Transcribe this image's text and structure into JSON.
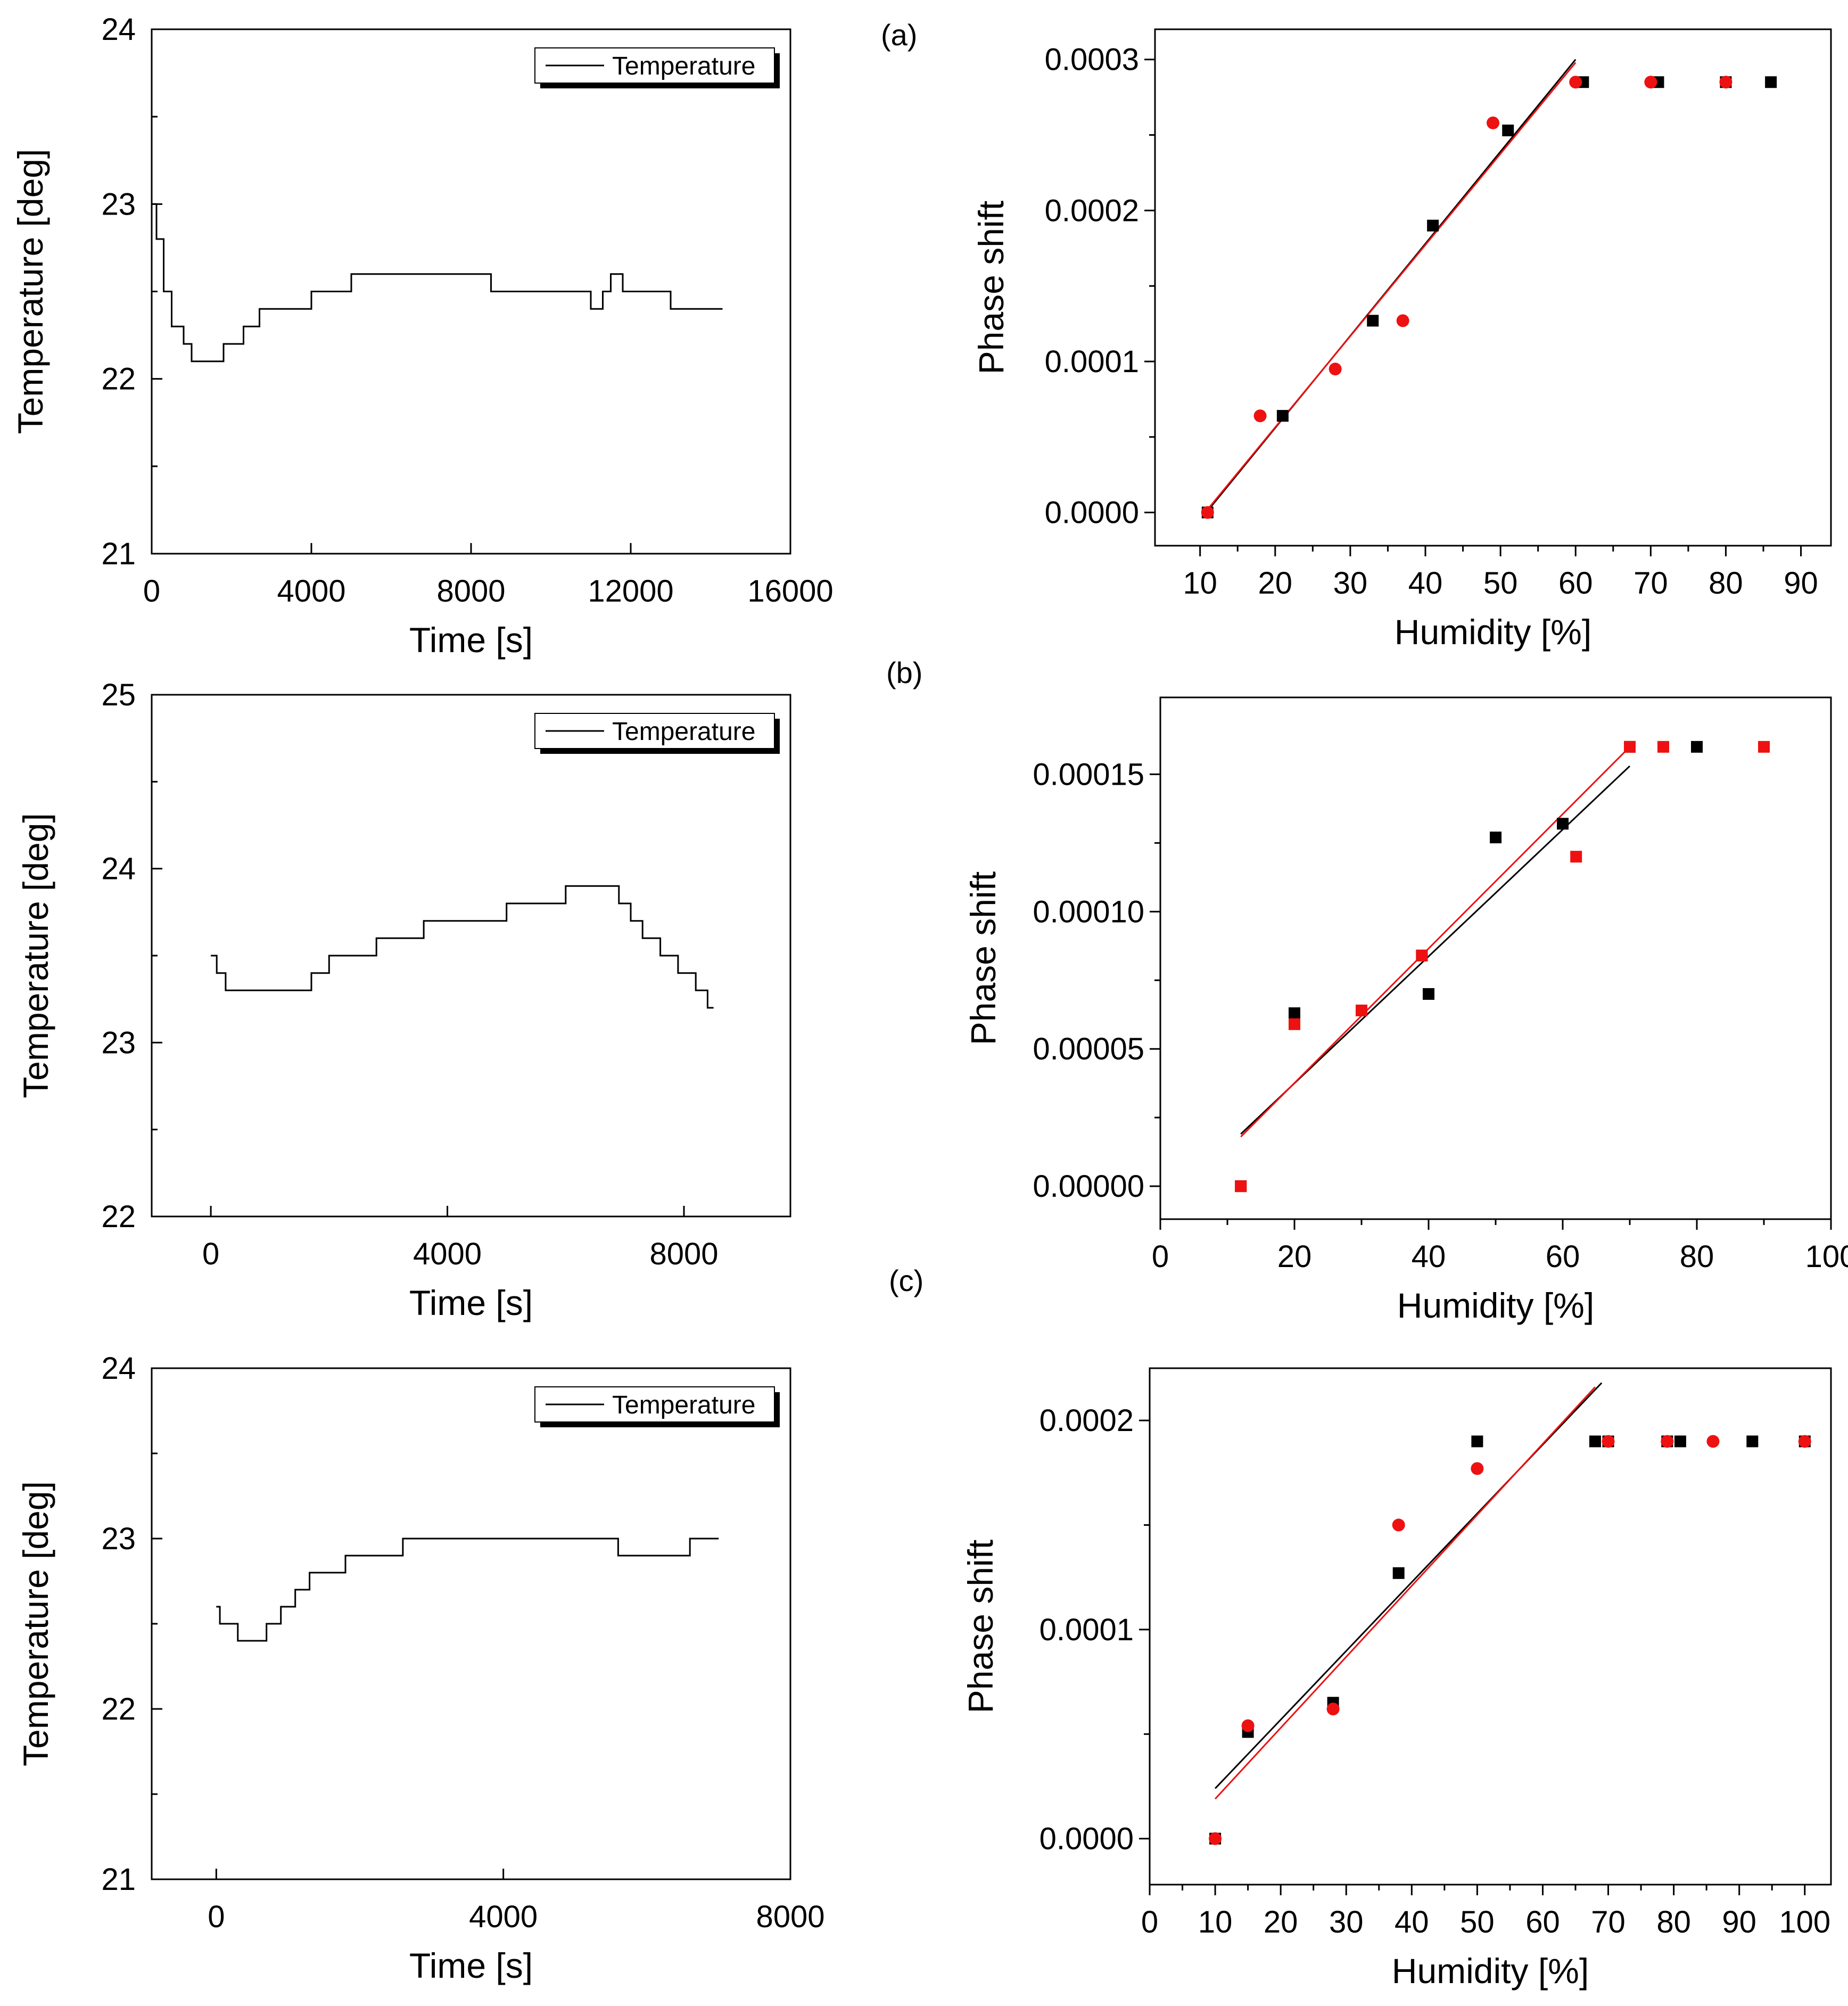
{
  "chart_data": [
    {
      "id": "temp-a",
      "type": "line",
      "title": "",
      "xlabel": "Time [s]",
      "ylabel": "Temperature [deg]",
      "xlim": [
        0,
        16000
      ],
      "ylim": [
        21,
        24
      ],
      "xticks": [
        0,
        4000,
        8000,
        12000,
        16000
      ],
      "xtick_labels": [
        "0",
        "4000",
        "8000",
        "12000",
        "16000"
      ],
      "yticks": [
        21,
        22,
        23,
        24
      ],
      "ytick_labels": [
        "21",
        "22",
        "23",
        "24"
      ],
      "legend": {
        "position": "top-right",
        "entries": [
          "Temperature"
        ]
      },
      "series": [
        {
          "name": "Temperature",
          "color": "#000000",
          "x": [
            0,
            120,
            300,
            500,
            800,
            1000,
            1300,
            1600,
            1800,
            2000,
            2300,
            2700,
            3000,
            3500,
            4000,
            4500,
            5000,
            5500,
            6000,
            6500,
            7000,
            7500,
            8000,
            8500,
            9000,
            9500,
            10000,
            10500,
            11000,
            11300,
            11500,
            11800,
            12000,
            12500,
            13000,
            13300,
            13500,
            13800,
            14300
          ],
          "y": [
            23.0,
            22.8,
            22.5,
            22.3,
            22.2,
            22.1,
            22.1,
            22.1,
            22.2,
            22.2,
            22.3,
            22.4,
            22.4,
            22.4,
            22.5,
            22.5,
            22.6,
            22.6,
            22.6,
            22.6,
            22.6,
            22.6,
            22.6,
            22.5,
            22.5,
            22.5,
            22.5,
            22.5,
            22.4,
            22.5,
            22.6,
            22.5,
            22.5,
            22.5,
            22.4,
            22.4,
            22.4,
            22.4,
            22.4
          ]
        }
      ]
    },
    {
      "id": "phase-a",
      "type": "scatter",
      "panel_label": "(a)",
      "title": "",
      "xlabel": "Humidity [%]",
      "ylabel": "Phase shift",
      "xlim": [
        4,
        94
      ],
      "ylim": [
        -2.2e-05,
        0.00032
      ],
      "xticks": [
        10,
        20,
        30,
        40,
        50,
        60,
        70,
        80,
        90
      ],
      "xtick_labels": [
        "10",
        "20",
        "30",
        "40",
        "50",
        "60",
        "70",
        "80",
        "90"
      ],
      "yticks": [
        0.0,
        0.0001,
        0.0002,
        0.0003
      ],
      "ytick_labels": [
        "0.0000",
        "0.0001",
        "0.0002",
        "0.0003"
      ],
      "series": [
        {
          "name": "black squares",
          "marker": "square",
          "color": "#000000",
          "x": [
            11,
            21,
            33,
            41,
            51,
            61,
            71,
            80,
            86
          ],
          "y": [
            0.0,
            6.4e-05,
            0.000127,
            0.00019,
            0.000253,
            0.000285,
            0.000285,
            0.000285,
            0.000285
          ]
        },
        {
          "name": "red circles",
          "marker": "circle",
          "color": "#ee1111",
          "x": [
            11,
            18,
            28,
            37,
            49,
            60,
            70,
            80
          ],
          "y": [
            0.0,
            6.4e-05,
            9.5e-05,
            0.000127,
            0.000258,
            0.000285,
            0.000285,
            0.000285
          ]
        }
      ],
      "fits": [
        {
          "color": "#000000",
          "x": [
            10.5,
            60
          ],
          "y": [
            -2e-06,
            0.0003
          ]
        },
        {
          "color": "#ee1111",
          "x": [
            10.5,
            60
          ],
          "y": [
            -1e-06,
            0.000298
          ]
        }
      ]
    },
    {
      "id": "temp-b",
      "type": "line",
      "title": "",
      "xlabel": "Time [s]",
      "ylabel": "Temperature [deg]",
      "xlim": [
        -1000,
        9800
      ],
      "ylim": [
        22,
        25
      ],
      "xticks": [
        0,
        4000,
        8000
      ],
      "xtick_labels": [
        "0",
        "4000",
        "8000"
      ],
      "yticks": [
        22,
        23,
        24,
        25
      ],
      "ytick_labels": [
        "22",
        "23",
        "24",
        "25"
      ],
      "legend": {
        "position": "top-right",
        "entries": [
          "Temperature"
        ]
      },
      "series": [
        {
          "name": "Temperature",
          "color": "#000000",
          "x": [
            0,
            100,
            250,
            700,
            1200,
            1700,
            2000,
            2400,
            2800,
            3200,
            3600,
            4000,
            4500,
            5000,
            5500,
            6000,
            6500,
            6800,
            6900,
            7100,
            7300,
            7600,
            7900,
            8200,
            8400,
            8500
          ],
          "y": [
            23.5,
            23.4,
            23.3,
            23.3,
            23.3,
            23.4,
            23.5,
            23.5,
            23.6,
            23.6,
            23.7,
            23.7,
            23.7,
            23.8,
            23.8,
            23.9,
            23.9,
            23.9,
            23.8,
            23.7,
            23.6,
            23.5,
            23.4,
            23.3,
            23.2,
            23.2
          ]
        }
      ]
    },
    {
      "id": "phase-b",
      "type": "scatter",
      "panel_label": "(b)",
      "title": "",
      "xlabel": "Humidity [%]",
      "ylabel": "Phase shift",
      "xlim": [
        0,
        100
      ],
      "ylim": [
        -1.2e-05,
        0.000178
      ],
      "xticks": [
        0,
        20,
        40,
        60,
        80,
        100
      ],
      "xtick_labels": [
        "0",
        "20",
        "40",
        "60",
        "80",
        "100"
      ],
      "yticks": [
        0.0,
        5e-05,
        0.0001,
        0.00015
      ],
      "ytick_labels": [
        "0.00000",
        "0.00005",
        "0.00010",
        "0.00015"
      ],
      "series": [
        {
          "name": "black squares",
          "marker": "square",
          "color": "#000000",
          "x": [
            12,
            20,
            30,
            39,
            40,
            50,
            60,
            70,
            80
          ],
          "y": [
            0.0,
            6.3e-05,
            6.4e-05,
            8.4e-05,
            7e-05,
            0.000127,
            0.000132,
            0.00016,
            0.00016
          ]
        },
        {
          "name": "red squares",
          "marker": "square",
          "color": "#ee1111",
          "x": [
            12,
            20,
            30,
            39,
            62,
            70,
            75,
            90
          ],
          "y": [
            0.0,
            5.9e-05,
            6.4e-05,
            8.4e-05,
            0.00012,
            0.00016,
            0.00016,
            0.00016
          ]
        }
      ],
      "fits": [
        {
          "color": "#000000",
          "x": [
            12,
            70
          ],
          "y": [
            1.9e-05,
            0.000153
          ]
        },
        {
          "color": "#ee1111",
          "x": [
            12,
            70
          ],
          "y": [
            1.8e-05,
            0.00016
          ]
        }
      ]
    },
    {
      "id": "temp-c",
      "type": "line",
      "title": "",
      "xlabel": "Time [s]",
      "ylabel": "Temperature [deg]",
      "xlim": [
        -900,
        8000
      ],
      "ylim": [
        21,
        24
      ],
      "xticks": [
        0,
        4000,
        8000
      ],
      "xtick_labels": [
        "0",
        "4000",
        "8000"
      ],
      "yticks": [
        21,
        22,
        23,
        24
      ],
      "ytick_labels": [
        "21",
        "22",
        "23",
        "24"
      ],
      "legend": {
        "position": "top-right",
        "entries": [
          "Temperature"
        ]
      },
      "series": [
        {
          "name": "Temperature",
          "color": "#000000",
          "x": [
            0,
            50,
            300,
            700,
            900,
            1100,
            1300,
            1500,
            1800,
            2200,
            2600,
            3000,
            3400,
            3800,
            4100,
            4400,
            4800,
            5200,
            5600,
            6000,
            6300,
            6600,
            6800,
            7000
          ],
          "y": [
            22.6,
            22.5,
            22.4,
            22.5,
            22.6,
            22.7,
            22.8,
            22.8,
            22.9,
            22.9,
            23.0,
            23.0,
            23.0,
            23.0,
            23.0,
            23.0,
            23.0,
            23.0,
            22.9,
            22.9,
            22.9,
            23.0,
            23.0,
            23.0
          ]
        }
      ]
    },
    {
      "id": "phase-c",
      "type": "scatter",
      "panel_label": "(c)",
      "title": "",
      "xlabel": "Humidity [%]",
      "ylabel": "Phase shift",
      "xlim": [
        0,
        104
      ],
      "ylim": [
        -2.2e-05,
        0.000225
      ],
      "xticks": [
        0,
        10,
        20,
        30,
        40,
        50,
        60,
        70,
        80,
        90,
        100
      ],
      "xtick_labels": [
        "0",
        "10",
        "20",
        "30",
        "40",
        "50",
        "60",
        "70",
        "80",
        "90",
        "100"
      ],
      "yticks": [
        0.0,
        0.0001,
        0.0002
      ],
      "ytick_labels": [
        "0.0000",
        "0.0001",
        "0.0002"
      ],
      "series": [
        {
          "name": "black squares",
          "marker": "square",
          "color": "#000000",
          "x": [
            10,
            15,
            28,
            38,
            50,
            68,
            70,
            79,
            81,
            92,
            100
          ],
          "y": [
            0.0,
            5.1e-05,
            6.5e-05,
            0.000127,
            0.00019,
            0.00019,
            0.00019,
            0.00019,
            0.00019,
            0.00019,
            0.00019
          ]
        },
        {
          "name": "red circles",
          "marker": "circle",
          "color": "#ee1111",
          "x": [
            10,
            15,
            28,
            38,
            50,
            70,
            79,
            86,
            100
          ],
          "y": [
            0.0,
            5.4e-05,
            6.2e-05,
            0.00015,
            0.000177,
            0.00019,
            0.00019,
            0.00019,
            0.00019
          ]
        }
      ],
      "fits": [
        {
          "color": "#000000",
          "x": [
            10,
            69
          ],
          "y": [
            2.4e-05,
            0.000218
          ]
        },
        {
          "color": "#ee1111",
          "x": [
            10,
            68
          ],
          "y": [
            1.9e-05,
            0.000216
          ]
        }
      ]
    }
  ]
}
